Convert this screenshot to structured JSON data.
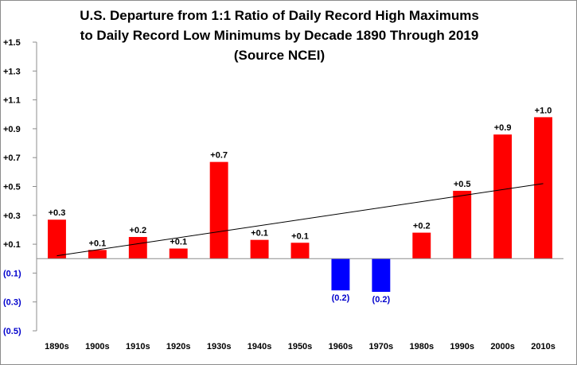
{
  "chart_data": {
    "type": "bar",
    "title_lines": [
      "U.S. Departure from 1:1 Ratio of Daily Record High Maximums",
      "to Daily Record Low Minimums by Decade 1890 Through 2019",
      "(Source NCEI)"
    ],
    "categories": [
      "1890s",
      "1900s",
      "1910s",
      "1920s",
      "1930s",
      "1940s",
      "1950s",
      "1960s",
      "1970s",
      "1980s",
      "1990s",
      "2000s",
      "2010s"
    ],
    "values": [
      0.27,
      0.06,
      0.15,
      0.07,
      0.67,
      0.13,
      0.11,
      -0.22,
      -0.23,
      0.18,
      0.47,
      0.86,
      0.98
    ],
    "data_labels": [
      "+0.3",
      "+0.1",
      "+0.2",
      "+0.1",
      "+0.7",
      "+0.1",
      "+0.1",
      "(0.2)",
      "(0.2)",
      "+0.2",
      "+0.5",
      "+0.9",
      "+1.0"
    ],
    "ytick_values": [
      1.5,
      1.3,
      1.1,
      0.9,
      0.7,
      0.5,
      0.3,
      0.1,
      -0.1,
      -0.3,
      -0.5
    ],
    "ytick_labels": [
      "+1.5",
      "+1.3",
      "+1.1",
      "+0.9",
      "+0.7",
      "+0.5",
      "+0.3",
      "+0.1",
      "(0.1)",
      "(0.3)",
      "(0.5)"
    ],
    "ylim": [
      -0.5,
      1.5
    ],
    "trendline": {
      "start": 0.02,
      "end": 0.52
    },
    "grid": false,
    "legend": "none",
    "colors": {
      "positive": "#ff0000",
      "negative": "#0000ff",
      "positive_tick": "#000000",
      "negative_tick": "#0000cc",
      "trend": "#000000"
    }
  }
}
